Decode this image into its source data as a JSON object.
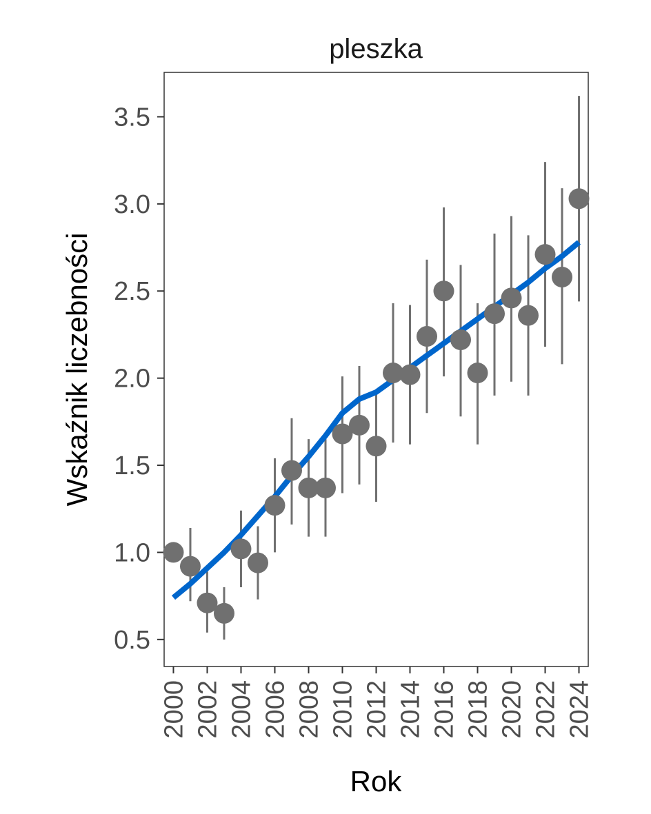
{
  "chart_data": {
    "type": "scatter",
    "title": "pleszka",
    "xlabel": "Rok",
    "ylabel": "Wskaźnik liczebności",
    "xlim": [
      1999.45,
      2024.55
    ],
    "ylim": [
      0.345,
      3.755
    ],
    "x_ticks": [
      2000,
      2002,
      2004,
      2006,
      2008,
      2010,
      2012,
      2014,
      2016,
      2018,
      2020,
      2022,
      2024
    ],
    "x_tick_labels": [
      "2000",
      "2002",
      "2004",
      "2006",
      "2008",
      "2010",
      "2012",
      "2014",
      "2016",
      "2018",
      "2020",
      "2022",
      "2024"
    ],
    "y_ticks": [
      0.5,
      1.0,
      1.5,
      2.0,
      2.5,
      3.0,
      3.5
    ],
    "y_tick_labels": [
      "0.5",
      "1.0",
      "1.5",
      "2.0",
      "2.5",
      "3.0",
      "3.5"
    ],
    "grid": false,
    "series": [
      {
        "kind": "points_with_errorbars",
        "color": "#707070",
        "x": [
          2000,
          2001,
          2002,
          2003,
          2004,
          2005,
          2006,
          2007,
          2008,
          2009,
          2010,
          2011,
          2012,
          2013,
          2014,
          2015,
          2016,
          2017,
          2018,
          2019,
          2020,
          2021,
          2022,
          2023,
          2024
        ],
        "y": [
          1.0,
          0.92,
          0.71,
          0.65,
          1.02,
          0.94,
          1.27,
          1.47,
          1.37,
          1.37,
          1.68,
          1.73,
          1.61,
          2.03,
          2.02,
          2.24,
          2.5,
          2.22,
          2.03,
          2.37,
          2.46,
          2.36,
          2.71,
          2.58,
          3.03
        ],
        "lower": [
          1.0,
          0.72,
          0.54,
          0.5,
          0.8,
          0.73,
          1.0,
          1.16,
          1.09,
          1.09,
          1.34,
          1.39,
          1.29,
          1.63,
          1.62,
          1.8,
          2.01,
          1.78,
          1.62,
          1.9,
          1.98,
          1.9,
          2.18,
          2.08,
          2.44
        ],
        "upper": [
          1.0,
          1.14,
          0.89,
          0.8,
          1.24,
          1.15,
          1.54,
          1.77,
          1.65,
          1.65,
          2.01,
          2.07,
          1.93,
          2.43,
          2.42,
          2.68,
          2.98,
          2.65,
          2.43,
          2.83,
          2.93,
          2.82,
          3.24,
          3.09,
          3.62
        ]
      },
      {
        "kind": "trend_line",
        "color": "#0066cc",
        "x": [
          2000,
          2001,
          2002,
          2003,
          2004,
          2005,
          2006,
          2007,
          2008,
          2009,
          2010,
          2011,
          2012,
          2013,
          2014,
          2015,
          2016,
          2017,
          2018,
          2019,
          2020,
          2021,
          2022,
          2023,
          2024
        ],
        "y": [
          0.74,
          0.82,
          0.91,
          1.0,
          1.1,
          1.21,
          1.32,
          1.44,
          1.55,
          1.67,
          1.8,
          1.88,
          1.92,
          1.99,
          2.06,
          2.13,
          2.2,
          2.27,
          2.34,
          2.41,
          2.48,
          2.55,
          2.63,
          2.7,
          2.78
        ]
      }
    ]
  }
}
